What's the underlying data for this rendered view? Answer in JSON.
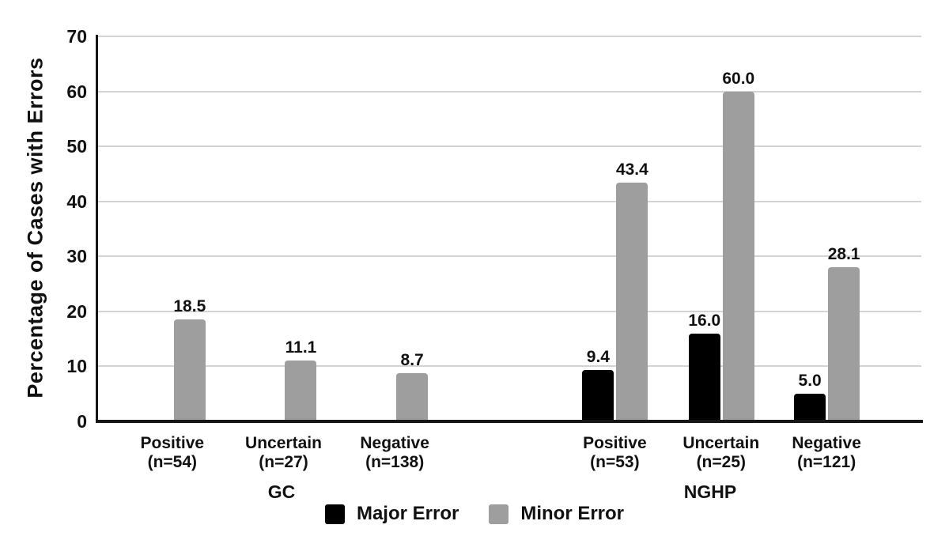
{
  "chart_data": {
    "type": "bar",
    "title": "",
    "xlabel": "",
    "ylabel": "Percentage of Cases with Errors",
    "ylim": [
      0,
      70
    ],
    "yticks": [
      "0",
      "10",
      "20",
      "30",
      "40",
      "50",
      "60",
      "70"
    ],
    "grid": true,
    "legend_position": "bottom-center",
    "groups": [
      "GC",
      "NGHP"
    ],
    "categories": [
      {
        "line1": "Positive",
        "line2": "(n=54)",
        "group": "GC"
      },
      {
        "line1": "Uncertain",
        "line2": "(n=27)",
        "group": "GC"
      },
      {
        "line1": "Negative",
        "line2": "(n=138)",
        "group": "GC"
      },
      {
        "line1": "Positive",
        "line2": "(n=53)",
        "group": "NGHP"
      },
      {
        "line1": "Uncertain",
        "line2": "(n=25)",
        "group": "NGHP"
      },
      {
        "line1": "Negative",
        "line2": "(n=121)",
        "group": "NGHP"
      }
    ],
    "series": [
      {
        "name": "Major Error",
        "color": "#000000",
        "values": [
          0,
          0,
          0,
          9.4,
          16.0,
          5.0
        ],
        "labels": [
          "",
          "",
          "",
          "9.4",
          "16.0",
          "5.0"
        ]
      },
      {
        "name": "Minor Error",
        "color": "#9e9e9e",
        "values": [
          18.5,
          11.1,
          8.7,
          43.4,
          60.0,
          28.1
        ],
        "labels": [
          "18.5",
          "11.1",
          "8.7",
          "43.4",
          "60.0",
          "28.1"
        ]
      }
    ],
    "colors": {
      "axis": "#161616",
      "gridline": "#d4d4d4",
      "text": "#111111"
    }
  }
}
